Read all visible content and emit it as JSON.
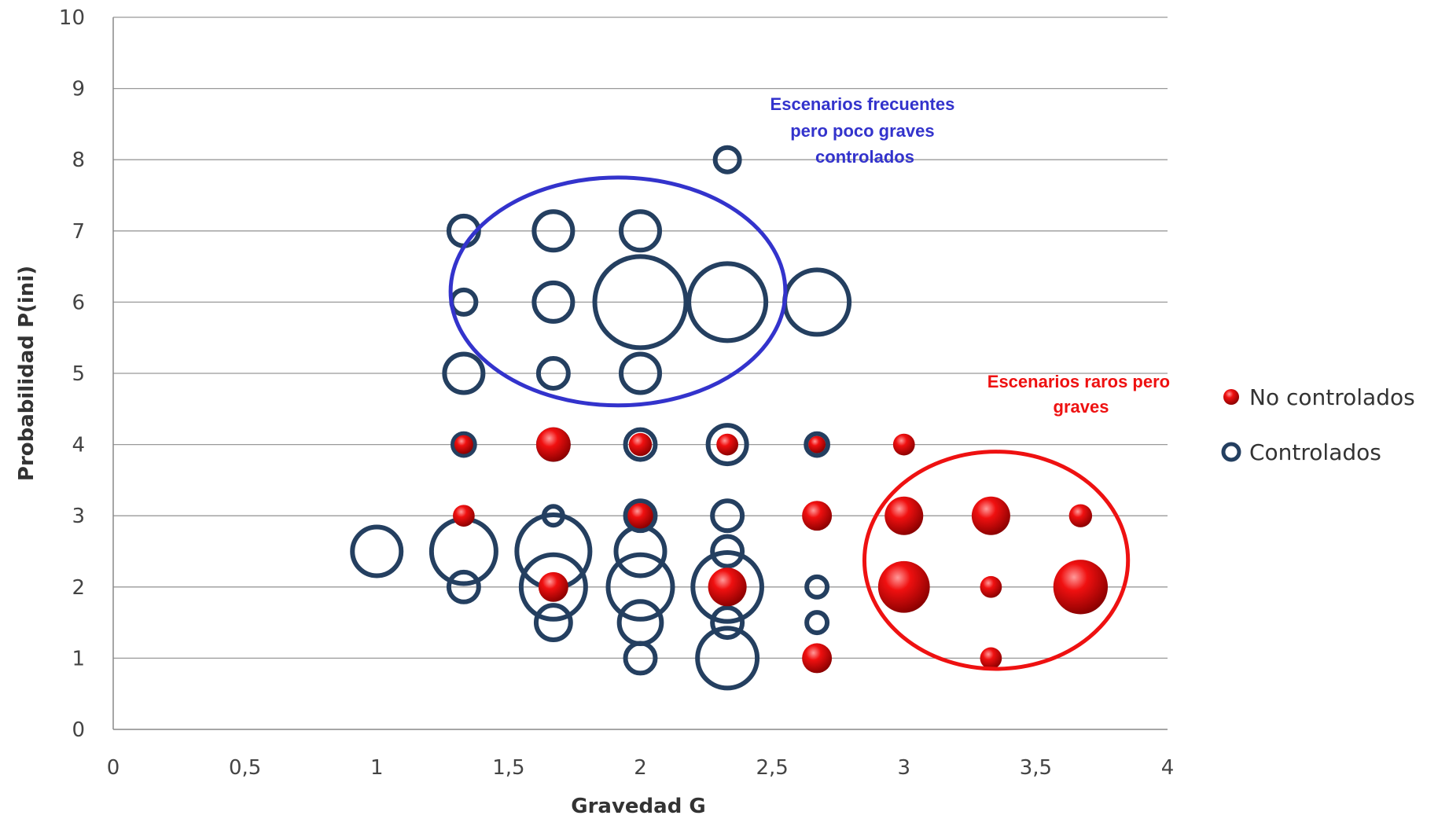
{
  "chart_data": {
    "type": "bubble",
    "title": "",
    "xlabel": "Gravedad G",
    "ylabel": "Probabilidad P(ini)",
    "xlim": [
      0,
      4
    ],
    "ylim": [
      0,
      10
    ],
    "xticks": [
      "0",
      "0,5",
      "1",
      "1,5",
      "2",
      "2,5",
      "3",
      "3,5",
      "4"
    ],
    "xtick_values": [
      0,
      0.5,
      1,
      1.5,
      2,
      2.5,
      3,
      3.5,
      4
    ],
    "yticks": [
      "0",
      "1",
      "2",
      "3",
      "4",
      "5",
      "6",
      "7",
      "8",
      "9",
      "10"
    ],
    "ytick_values": [
      0,
      1,
      2,
      3,
      4,
      5,
      6,
      7,
      8,
      9,
      10
    ],
    "grid": "horizontal",
    "legend": {
      "position": "right",
      "items": [
        {
          "label": "No controlados",
          "series": "No controlados"
        },
        {
          "label": "Controlados",
          "series": "Controlados"
        }
      ]
    },
    "series": [
      {
        "name": "Controlados",
        "color": "#243f60",
        "marker": "hollow",
        "points": [
          {
            "x": 2.33,
            "y": 8,
            "size": 1
          },
          {
            "x": 1.33,
            "y": 7,
            "size": 1.5
          },
          {
            "x": 1.67,
            "y": 7,
            "size": 2.5
          },
          {
            "x": 2,
            "y": 7,
            "size": 2.5
          },
          {
            "x": 1.33,
            "y": 6,
            "size": 1
          },
          {
            "x": 1.67,
            "y": 6,
            "size": 2.5
          },
          {
            "x": 2,
            "y": 6,
            "size": 14
          },
          {
            "x": 2.33,
            "y": 6,
            "size": 10
          },
          {
            "x": 2.67,
            "y": 6,
            "size": 7
          },
          {
            "x": 1.33,
            "y": 5,
            "size": 2.5
          },
          {
            "x": 1.67,
            "y": 5,
            "size": 1.5
          },
          {
            "x": 2,
            "y": 5,
            "size": 2.5
          },
          {
            "x": 1.33,
            "y": 4,
            "size": 0.8
          },
          {
            "x": 1.67,
            "y": 4,
            "size": 1.5
          },
          {
            "x": 2,
            "y": 4,
            "size": 1.5
          },
          {
            "x": 2.33,
            "y": 4,
            "size": 2.5
          },
          {
            "x": 2.67,
            "y": 4,
            "size": 0.8
          },
          {
            "x": 1.67,
            "y": 3,
            "size": 0.6
          },
          {
            "x": 2,
            "y": 3,
            "size": 1.5
          },
          {
            "x": 2.33,
            "y": 3,
            "size": 1.5
          },
          {
            "x": 1,
            "y": 2.5,
            "size": 4
          },
          {
            "x": 1.33,
            "y": 2.5,
            "size": 7
          },
          {
            "x": 1.67,
            "y": 2.5,
            "size": 9
          },
          {
            "x": 2,
            "y": 2.5,
            "size": 4
          },
          {
            "x": 2.33,
            "y": 2.5,
            "size": 1.5
          },
          {
            "x": 1.33,
            "y": 2,
            "size": 1.5
          },
          {
            "x": 1.67,
            "y": 2,
            "size": 7
          },
          {
            "x": 2,
            "y": 2,
            "size": 7
          },
          {
            "x": 2.33,
            "y": 2,
            "size": 8
          },
          {
            "x": 2.67,
            "y": 2,
            "size": 0.7
          },
          {
            "x": 1.67,
            "y": 1.5,
            "size": 2
          },
          {
            "x": 2,
            "y": 1.5,
            "size": 3
          },
          {
            "x": 2.33,
            "y": 1.5,
            "size": 1.5
          },
          {
            "x": 2.67,
            "y": 1.5,
            "size": 0.7
          },
          {
            "x": 2,
            "y": 1,
            "size": 1.5
          },
          {
            "x": 2.33,
            "y": 1,
            "size": 6
          }
        ]
      },
      {
        "name": "No controlados",
        "color": "#e00000",
        "marker": "filled",
        "points": [
          {
            "x": 1.33,
            "y": 4,
            "size": 0.6
          },
          {
            "x": 1.67,
            "y": 4,
            "size": 2
          },
          {
            "x": 2,
            "y": 4,
            "size": 0.9
          },
          {
            "x": 2.33,
            "y": 4,
            "size": 0.8
          },
          {
            "x": 2.67,
            "y": 4,
            "size": 0.5
          },
          {
            "x": 3,
            "y": 4,
            "size": 0.8
          },
          {
            "x": 1.33,
            "y": 3,
            "size": 0.8
          },
          {
            "x": 2,
            "y": 3,
            "size": 1.1
          },
          {
            "x": 2.67,
            "y": 3,
            "size": 1.5
          },
          {
            "x": 3,
            "y": 3,
            "size": 2.5
          },
          {
            "x": 3.33,
            "y": 3,
            "size": 2.5
          },
          {
            "x": 3.67,
            "y": 3,
            "size": 0.9
          },
          {
            "x": 1.67,
            "y": 2,
            "size": 1.5
          },
          {
            "x": 2.33,
            "y": 2,
            "size": 2.5
          },
          {
            "x": 3,
            "y": 2,
            "size": 4.5
          },
          {
            "x": 3.33,
            "y": 2,
            "size": 0.8
          },
          {
            "x": 3.67,
            "y": 2,
            "size": 5
          },
          {
            "x": 2.67,
            "y": 1,
            "size": 1.5
          },
          {
            "x": 3.33,
            "y": 1,
            "size": 0.8
          }
        ]
      }
    ],
    "annotations": [
      {
        "text": "Escenarios frecuentes pero poco graves controlados",
        "color": "#3333cc",
        "region": {
          "x": [
            1.28,
            2.55
          ],
          "y": [
            4.55,
            7.75
          ]
        }
      },
      {
        "text": "Escenarios raros pero graves",
        "color": "#ee1111",
        "region": {
          "x": [
            2.85,
            3.85
          ],
          "y": [
            0.85,
            3.9
          ]
        }
      }
    ]
  }
}
